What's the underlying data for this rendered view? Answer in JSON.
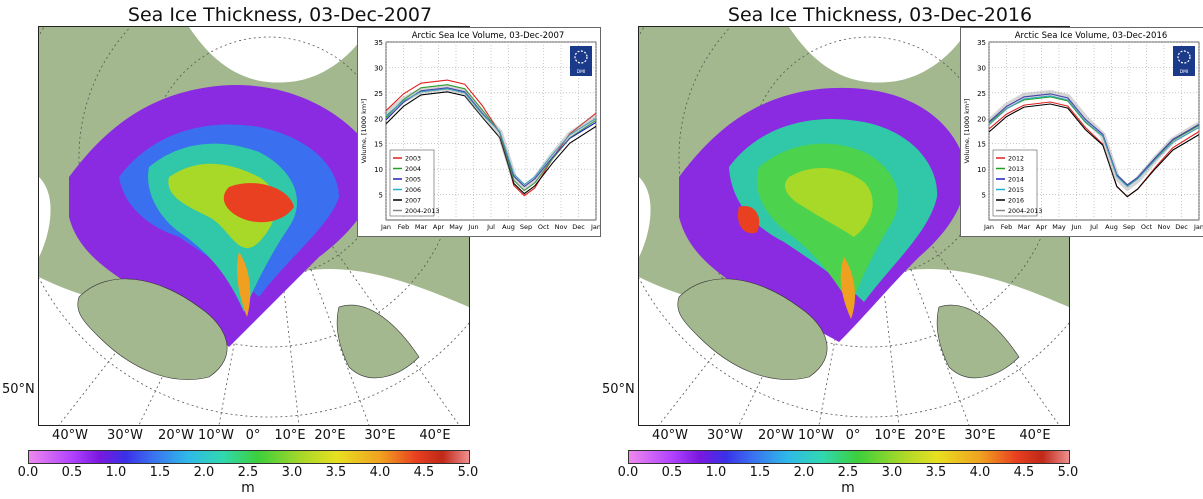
{
  "panels": [
    {
      "title": "Sea Ice Thickness, 03-Dec-2007",
      "lat_label": "50°N",
      "lon_labels": [
        "40°W",
        "30°W",
        "20°W",
        "10°W",
        "0°",
        "10°E",
        "20°E",
        "30°E",
        "40°E"
      ],
      "colorbar": {
        "ticks": [
          "0.0",
          "0.5",
          "1.0",
          "1.5",
          "2.0",
          "2.5",
          "3.0",
          "3.5",
          "4.0",
          "4.5",
          "5.0"
        ],
        "unit": "m"
      },
      "inset": {
        "title": "Arctic Sea Ice Volume, 03-Dec-2007",
        "ylabel": "Volume, [1000 km³]",
        "logo": "DMI",
        "yticks": [
          "5",
          "10",
          "15",
          "20",
          "25",
          "30",
          "35"
        ],
        "xticks": [
          "Jan",
          "Feb",
          "Mar",
          "Apr",
          "May",
          "Jun",
          "Jul",
          "Aug",
          "Sep",
          "Oct",
          "Nov",
          "Dec",
          "Jan"
        ],
        "legend": [
          "2003",
          "2004",
          "2005",
          "2006",
          "2007",
          "2004-2013"
        ],
        "legend_colors": [
          "#e02020",
          "#20a020",
          "#2020c0",
          "#20b0d0",
          "#000000",
          "#888888"
        ],
        "series_low_min": [
          4.8,
          5.8,
          6.6,
          7.0,
          5.2,
          6.4
        ],
        "series_peak": [
          27.5,
          26.6,
          26.0,
          25.8,
          25.2,
          26.0
        ],
        "series_end": [
          21.0,
          19.6,
          19.2,
          20.0,
          18.4,
          20.2
        ]
      }
    },
    {
      "title": "Sea Ice Thickness, 03-Dec-2016",
      "lat_label": "50°N",
      "lon_labels": [
        "40°W",
        "30°W",
        "20°W",
        "10°W",
        "0°",
        "10°E",
        "20°E",
        "30°E",
        "40°E"
      ],
      "colorbar": {
        "ticks": [
          "0.0",
          "0.5",
          "1.0",
          "1.5",
          "2.0",
          "2.5",
          "3.0",
          "3.5",
          "4.0",
          "4.5",
          "5.0"
        ],
        "unit": "m"
      },
      "inset": {
        "title": "Arctic Sea Ice Volume, 03-Dec-2016",
        "ylabel": "Volume, [1000 km³]",
        "logo": "DMI",
        "yticks": [
          "5",
          "10",
          "15",
          "20",
          "25",
          "30",
          "35"
        ],
        "xticks": [
          "Jan",
          "Feb",
          "Mar",
          "Apr",
          "May",
          "Jun",
          "Jul",
          "Aug",
          "Sep",
          "Oct",
          "Nov",
          "Dec",
          "Jan"
        ],
        "legend": [
          "2012",
          "2013",
          "2014",
          "2015",
          "2016",
          "2004-2013"
        ],
        "legend_colors": [
          "#e02020",
          "#20a020",
          "#2020c0",
          "#20b0d0",
          "#000000",
          "#888888"
        ],
        "series_low_min": [
          4.6,
          6.8,
          6.9,
          6.6,
          4.6,
          6.4
        ],
        "series_peak": [
          23.2,
          24.2,
          24.8,
          24.4,
          22.8,
          25.0
        ],
        "series_end": [
          17.4,
          18.6,
          18.8,
          18.2,
          16.8,
          18.8
        ]
      }
    }
  ]
}
